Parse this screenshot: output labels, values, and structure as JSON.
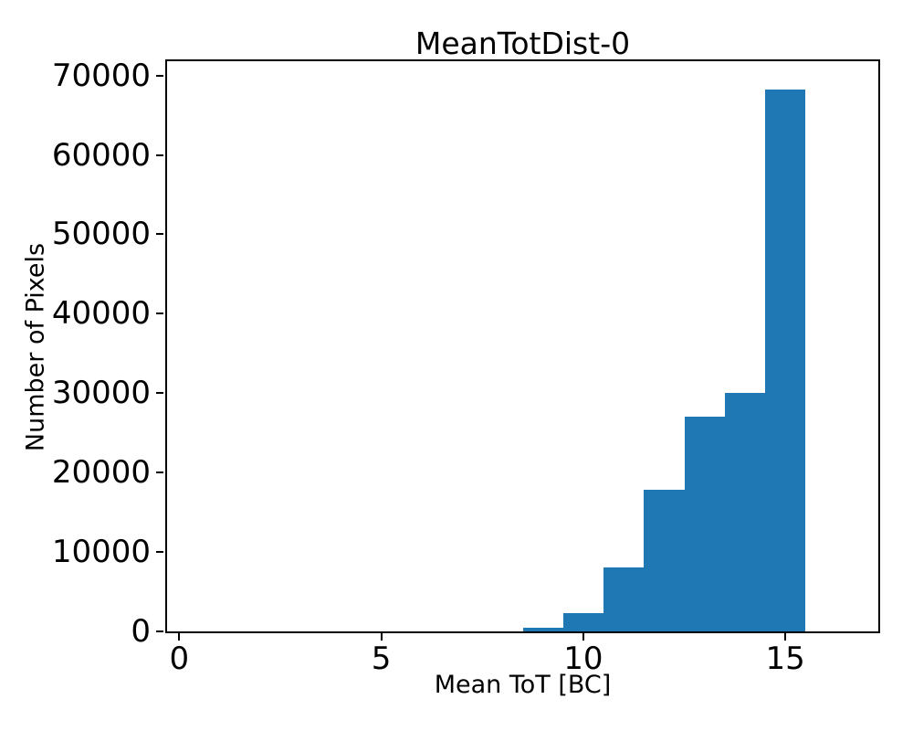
{
  "chart_data": {
    "type": "bar",
    "subtype": "histogram",
    "title": "MeanTotDist-0",
    "xlabel": "Mean ToT [BC]",
    "ylabel": "Number of Pixels",
    "bin_edges": [
      8.5,
      9.5,
      10.5,
      11.5,
      12.5,
      13.5,
      14.5,
      15.5
    ],
    "bin_centers": [
      9,
      10,
      11,
      12,
      13,
      14,
      15
    ],
    "counts": [
      430,
      2300,
      8000,
      17800,
      27000,
      30000,
      68200
    ],
    "xticks": [
      0,
      5,
      10,
      15
    ],
    "yticks": [
      0,
      10000,
      20000,
      30000,
      40000,
      50000,
      60000,
      70000
    ],
    "xlim": [
      -0.3,
      17.3
    ],
    "ylim": [
      0,
      71800
    ],
    "bar_color": "#1f77b4",
    "grid": false,
    "legend_position": "none"
  }
}
